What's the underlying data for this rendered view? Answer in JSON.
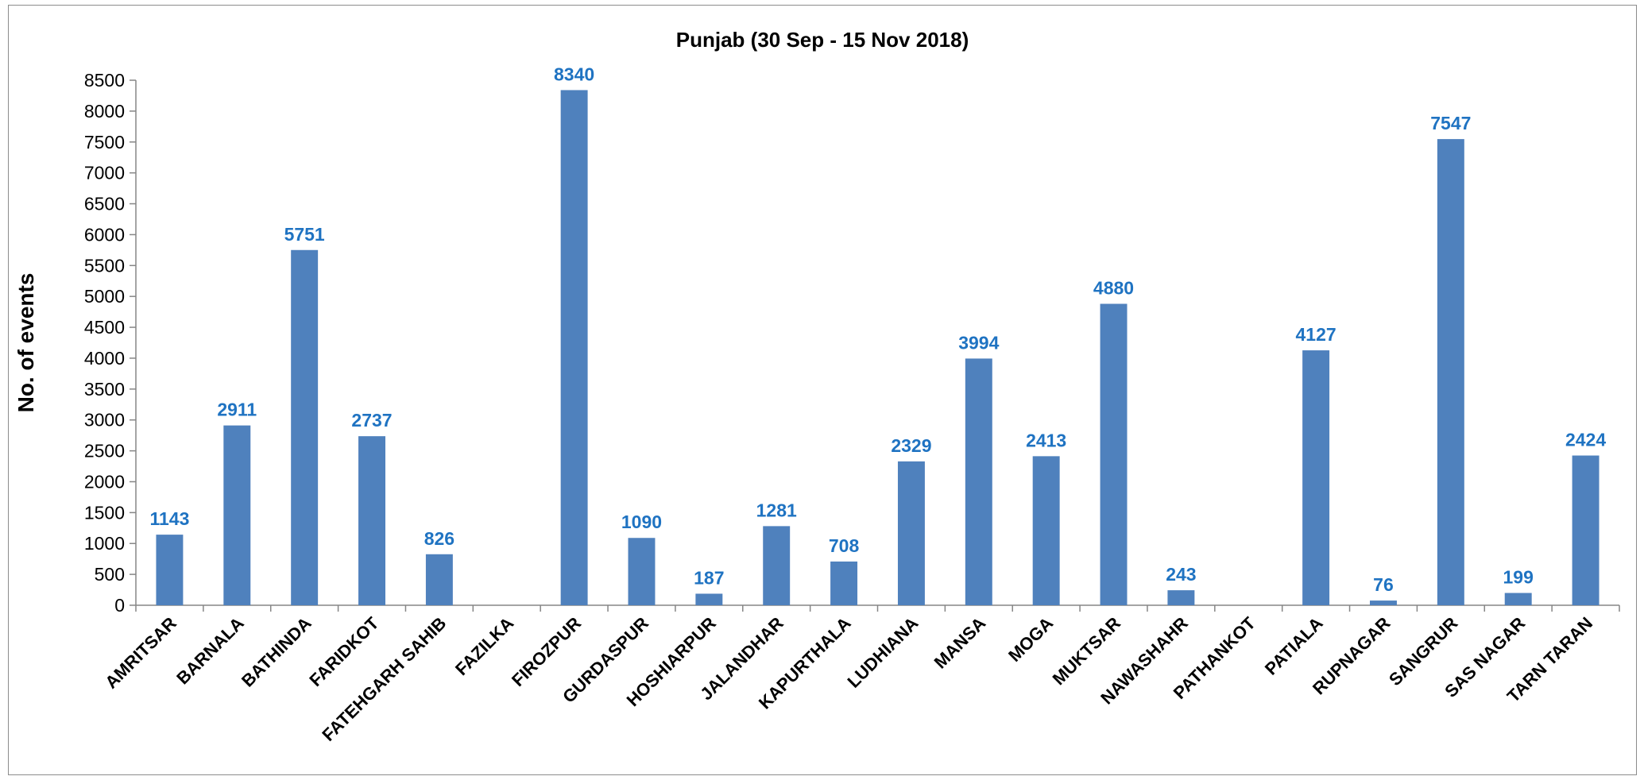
{
  "chart_data": {
    "type": "bar",
    "title": "Punjab (30 Sep - 15 Nov 2018)",
    "xlabel": "",
    "ylabel": "No. of events",
    "ylim": [
      0,
      8500
    ],
    "ytick_step": 500,
    "grid": false,
    "legend": "none",
    "bar_color": "#4f81bd",
    "label_color": "#1f73c2",
    "categories": [
      "AMRITSAR",
      "BARNALA",
      "BATHINDA",
      "FARIDKOT",
      "FATEHGARH SAHIB",
      "FAZILKA",
      "FIROZPUR",
      "GURDASPUR",
      "HOSHIARPUR",
      "JALANDHAR",
      "KAPURTHALA",
      "LUDHIANA",
      "MANSA",
      "MOGA",
      "MUKTSAR",
      "NAWASHAHR",
      "PATHANKOT",
      "PATIALA",
      "RUPNAGAR",
      "SANGRUR",
      "SAS NAGAR",
      "TARN TARAN"
    ],
    "values": [
      1143,
      2911,
      5751,
      2737,
      826,
      null,
      8340,
      1090,
      187,
      1281,
      708,
      2329,
      3994,
      2413,
      4880,
      243,
      null,
      4127,
      76,
      7547,
      199,
      2424
    ]
  }
}
